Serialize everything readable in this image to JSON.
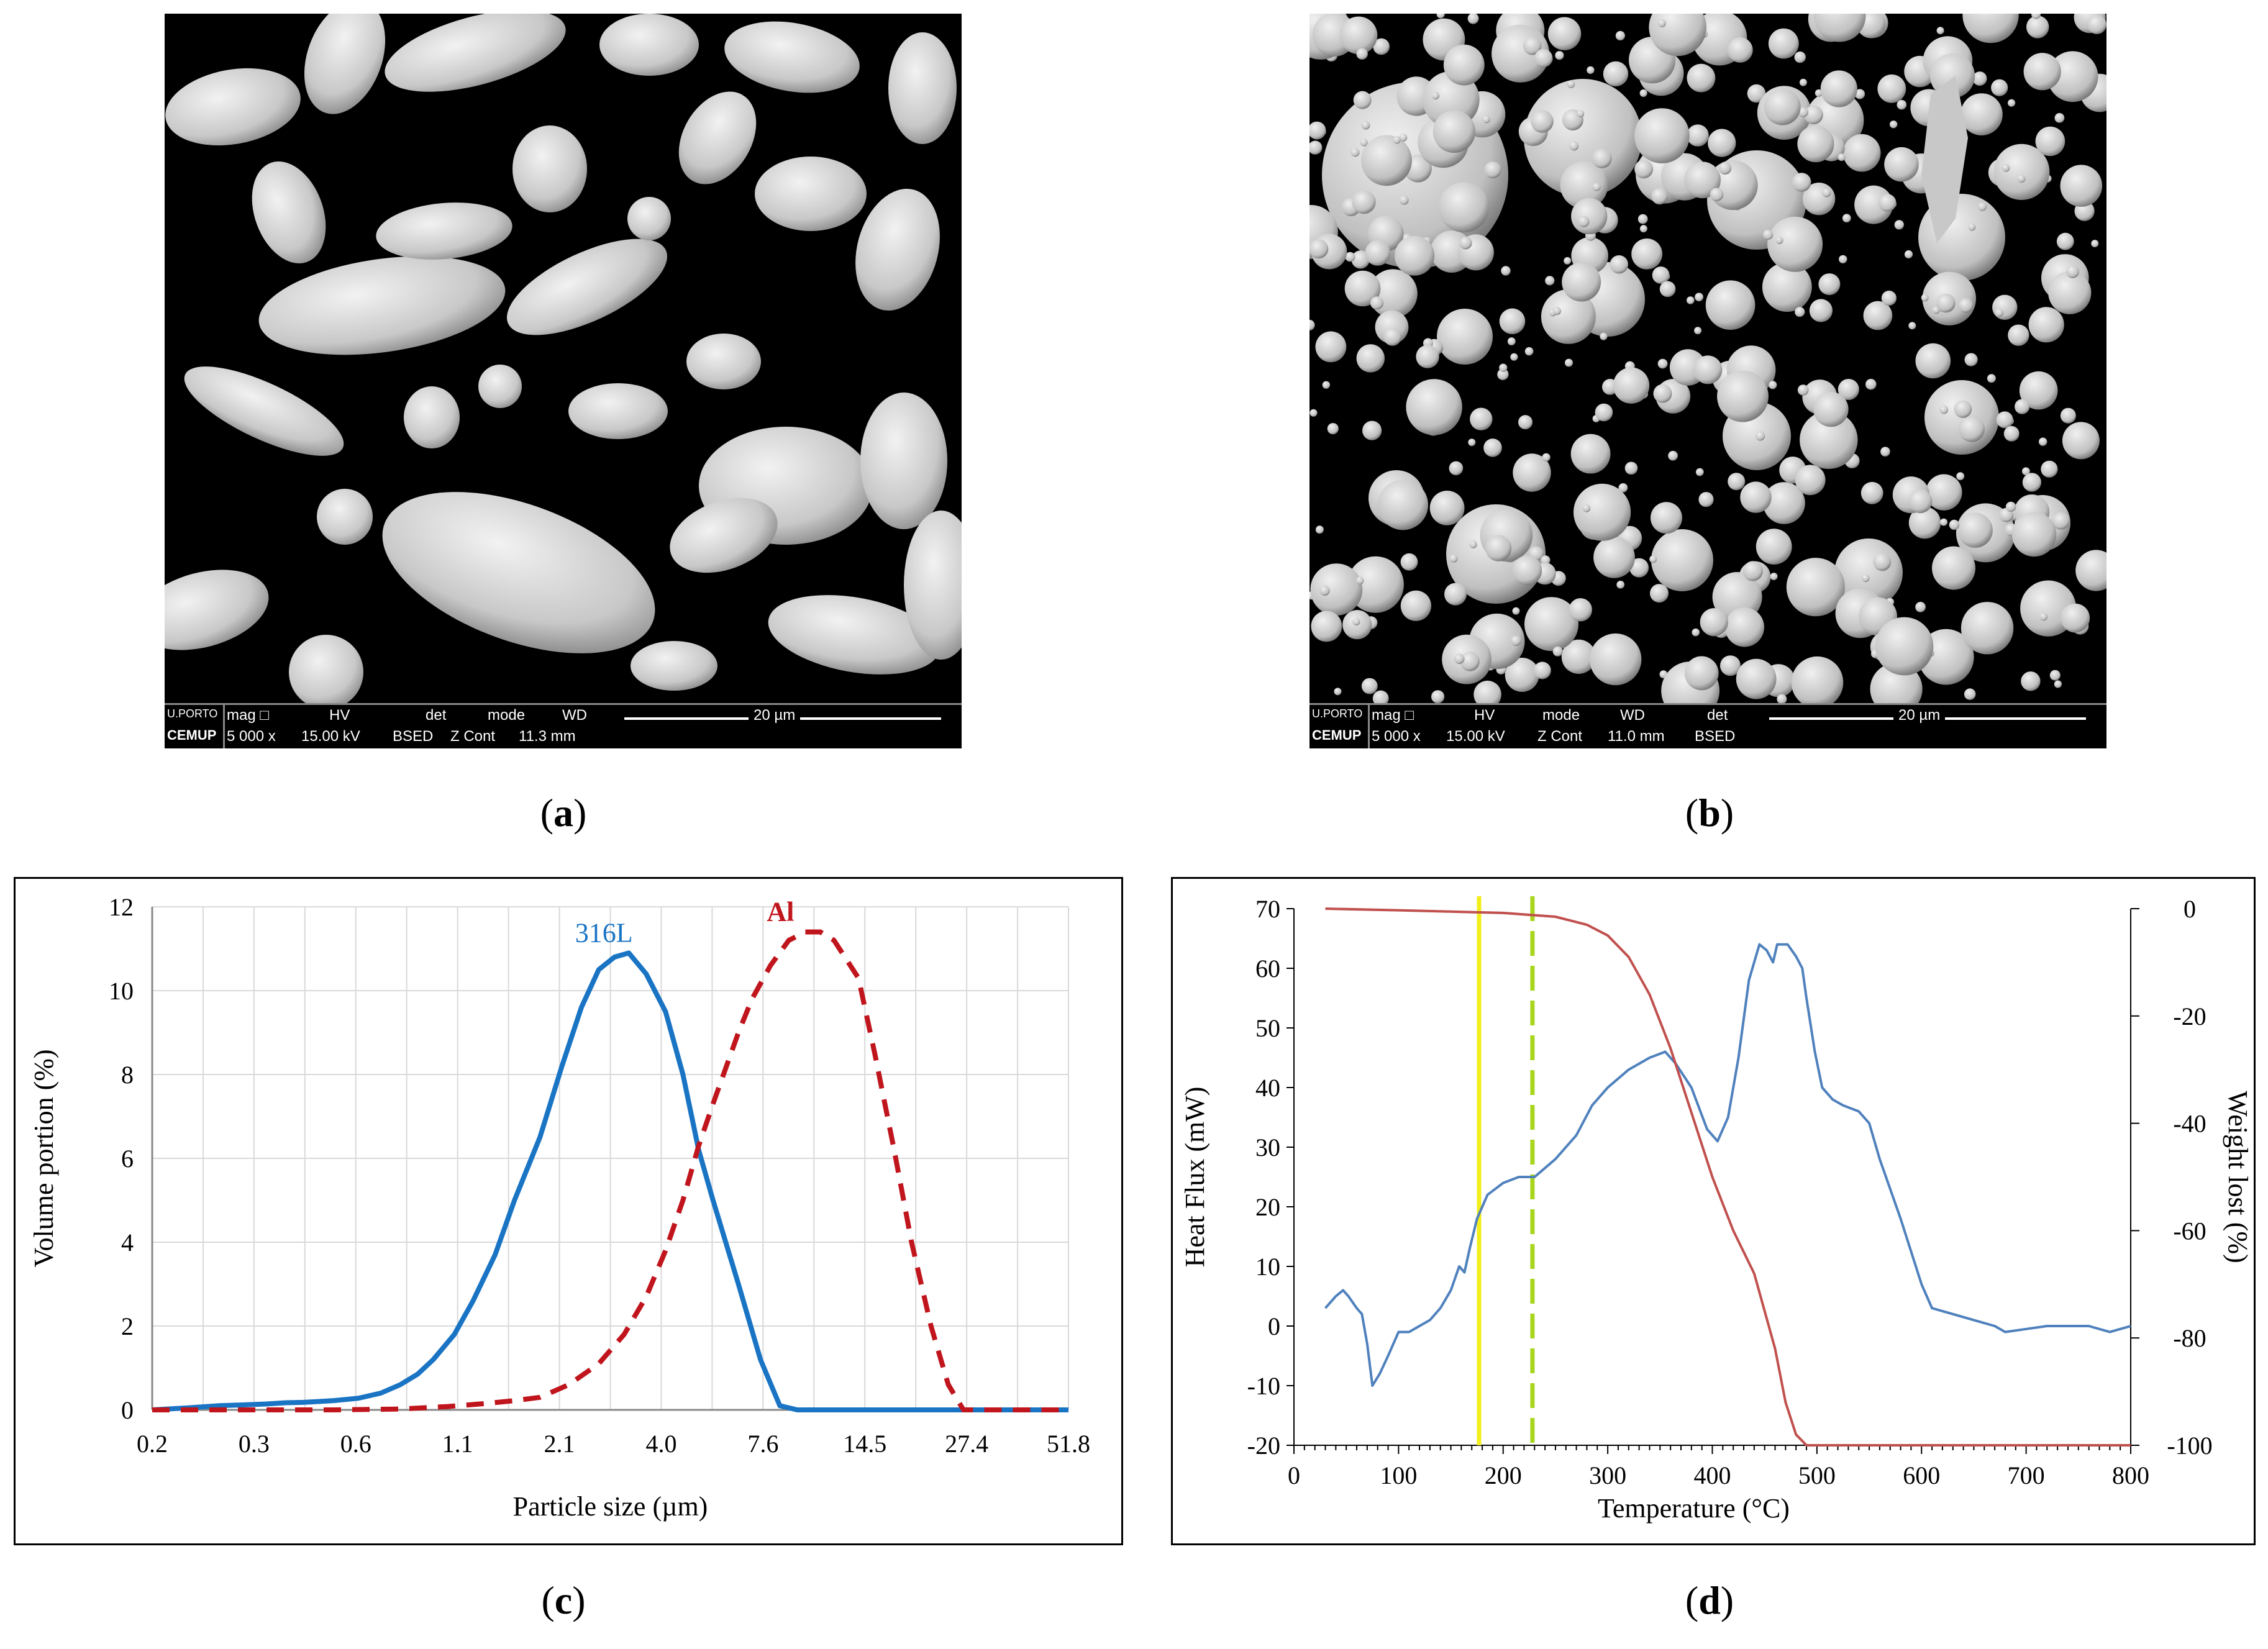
{
  "panels": {
    "a": {
      "caption_open": "(",
      "caption_letter": "a",
      "caption_close": ")",
      "infobar": {
        "logo_top": "U.PORTO",
        "logo_bottom": "CEMUP",
        "headers": [
          "mag □",
          "HV",
          "det",
          "mode",
          "WD"
        ],
        "values": [
          "5 000 x",
          "15.00 kV",
          "BSED",
          "Z Cont",
          "11.3 mm"
        ],
        "scale_label": "20 µm"
      }
    },
    "b": {
      "caption_open": "(",
      "caption_letter": "b",
      "caption_close": ")",
      "infobar": {
        "logo_top": "U.PORTO",
        "logo_bottom": "CEMUP",
        "headers": [
          "mag □",
          "HV",
          "mode",
          "WD",
          "det"
        ],
        "values": [
          "5 000 x",
          "15.00 kV",
          "Z Cont",
          "11.0 mm",
          "BSED"
        ],
        "scale_label": "20 µm"
      }
    },
    "c": {
      "caption_open": "(",
      "caption_letter": "c",
      "caption_close": ")"
    },
    "d": {
      "caption_open": "(",
      "caption_letter": "d",
      "caption_close": ")"
    }
  },
  "chart_data": [
    {
      "type": "line",
      "xlabel": "Particle size (µm)",
      "ylabel": "Volume portion (%)",
      "ylim": [
        0,
        12
      ],
      "yticks": [
        "0",
        "2",
        "4",
        "6",
        "8",
        "10",
        "12"
      ],
      "xticks": [
        "0.2",
        "0.3",
        "0.6",
        "1.1",
        "2.1",
        "4.0",
        "7.6",
        "14.5",
        "27.4",
        "51.8"
      ],
      "x_scale": "log",
      "grid": true,
      "series": [
        {
          "name": "316L",
          "color": "#1a74c4",
          "style": "solid",
          "x": [
            0.2,
            0.25,
            0.3,
            0.35,
            0.4,
            0.45,
            0.5,
            0.55,
            0.6,
            0.65,
            0.7,
            0.8,
            0.9,
            1.0,
            1.1,
            1.25,
            1.4,
            1.6,
            1.8,
            2.1,
            2.4,
            2.7,
            3.0,
            3.3,
            3.6,
            4.0,
            4.5,
            5.0,
            5.5,
            6.0,
            7.0,
            8.0,
            9.0,
            10.0,
            14.5,
            27.4,
            51.8
          ],
          "y": [
            0.0,
            0.05,
            0.1,
            0.12,
            0.14,
            0.17,
            0.18,
            0.2,
            0.22,
            0.25,
            0.28,
            0.4,
            0.6,
            0.85,
            1.2,
            1.8,
            2.6,
            3.7,
            5.0,
            6.5,
            8.2,
            9.6,
            10.5,
            10.8,
            10.9,
            10.4,
            9.5,
            8.0,
            6.2,
            5.0,
            3.0,
            1.2,
            0.1,
            0.0,
            0.0,
            0.0,
            0.0
          ]
        },
        {
          "name": "Al",
          "color": "#c0151c",
          "style": "dashed",
          "x": [
            0.2,
            0.4,
            0.6,
            0.9,
            1.2,
            1.5,
            1.8,
            2.1,
            2.5,
            3.0,
            3.5,
            4.0,
            4.5,
            5.0,
            5.5,
            6.0,
            7.0,
            7.6,
            8.5,
            9.5,
            10.5,
            11.5,
            12.5,
            14.5,
            16.0,
            18.0,
            20.0,
            22.5,
            25.0,
            27.4,
            51.8
          ],
          "y": [
            0.0,
            0.0,
            0.0,
            0.02,
            0.08,
            0.15,
            0.22,
            0.3,
            0.6,
            1.1,
            1.8,
            2.7,
            3.8,
            5.0,
            6.3,
            7.3,
            9.0,
            9.8,
            10.6,
            11.2,
            11.4,
            11.4,
            11.2,
            10.3,
            8.5,
            6.2,
            4.0,
            2.0,
            0.6,
            0.0,
            0.0
          ]
        }
      ]
    },
    {
      "type": "line",
      "xlabel": "Temperature (°C)",
      "ylabel": "Heat Flux (mW)",
      "y2label": "Weight lost (%)",
      "xlim": [
        0,
        800
      ],
      "ylim": [
        -20,
        70
      ],
      "y2lim": [
        -100,
        0
      ],
      "xticks": [
        "0",
        "100",
        "200",
        "300",
        "400",
        "500",
        "600",
        "700",
        "800"
      ],
      "yticks": [
        "-20",
        "-10",
        "0",
        "10",
        "20",
        "30",
        "40",
        "50",
        "60",
        "70"
      ],
      "y2ticks": [
        "-100",
        "-80",
        "-60",
        "-40",
        "-20",
        "0"
      ],
      "grid": false,
      "vlines": [
        {
          "x": 177,
          "color": "#f2ee1a",
          "style": "solid"
        },
        {
          "x": 228,
          "color": "#a8d61e",
          "style": "dashed"
        }
      ],
      "series": [
        {
          "color": "#4f81bd",
          "axis": "left",
          "x": [
            30,
            40,
            47,
            52,
            60,
            65,
            70,
            75,
            82,
            90,
            100,
            110,
            120,
            130,
            140,
            150,
            158,
            163,
            168,
            175,
            185,
            200,
            215,
            230,
            250,
            270,
            285,
            300,
            320,
            340,
            355,
            365,
            380,
            395,
            405,
            415,
            425,
            435,
            445,
            452,
            458,
            462,
            467,
            472,
            480,
            486,
            490,
            498,
            505,
            515,
            525,
            540,
            550,
            560,
            580,
            600,
            610,
            630,
            650,
            670,
            680,
            700,
            720,
            740,
            760,
            780,
            800
          ],
          "y": [
            3,
            5,
            6,
            5,
            3,
            2,
            -3,
            -10,
            -8,
            -5,
            -1,
            -1,
            0,
            1,
            3,
            6,
            10,
            9,
            13,
            18,
            22,
            24,
            25,
            25,
            28,
            32,
            37,
            40,
            43,
            45,
            46,
            44,
            40,
            33,
            31,
            35,
            45,
            58,
            64,
            63,
            61,
            64,
            64,
            64,
            62,
            60,
            55,
            46,
            40,
            38,
            37,
            36,
            34,
            28,
            18,
            7,
            3,
            2,
            1,
            0,
            -1,
            -0.5,
            0,
            0,
            0,
            -1,
            0
          ]
        },
        {
          "color": "#c0504d",
          "axis": "right",
          "x": [
            30,
            100,
            200,
            250,
            280,
            300,
            320,
            340,
            360,
            380,
            400,
            410,
            420,
            440,
            460,
            470,
            480,
            490,
            500,
            600,
            700,
            800
          ],
          "y": [
            0,
            -0.3,
            -0.8,
            -1.5,
            -3,
            -5,
            -9,
            -16,
            -26,
            -38,
            -50,
            -55,
            -60,
            -68,
            -82,
            -92,
            -98,
            -100,
            -100,
            -100,
            -100,
            -100
          ]
        }
      ]
    }
  ]
}
